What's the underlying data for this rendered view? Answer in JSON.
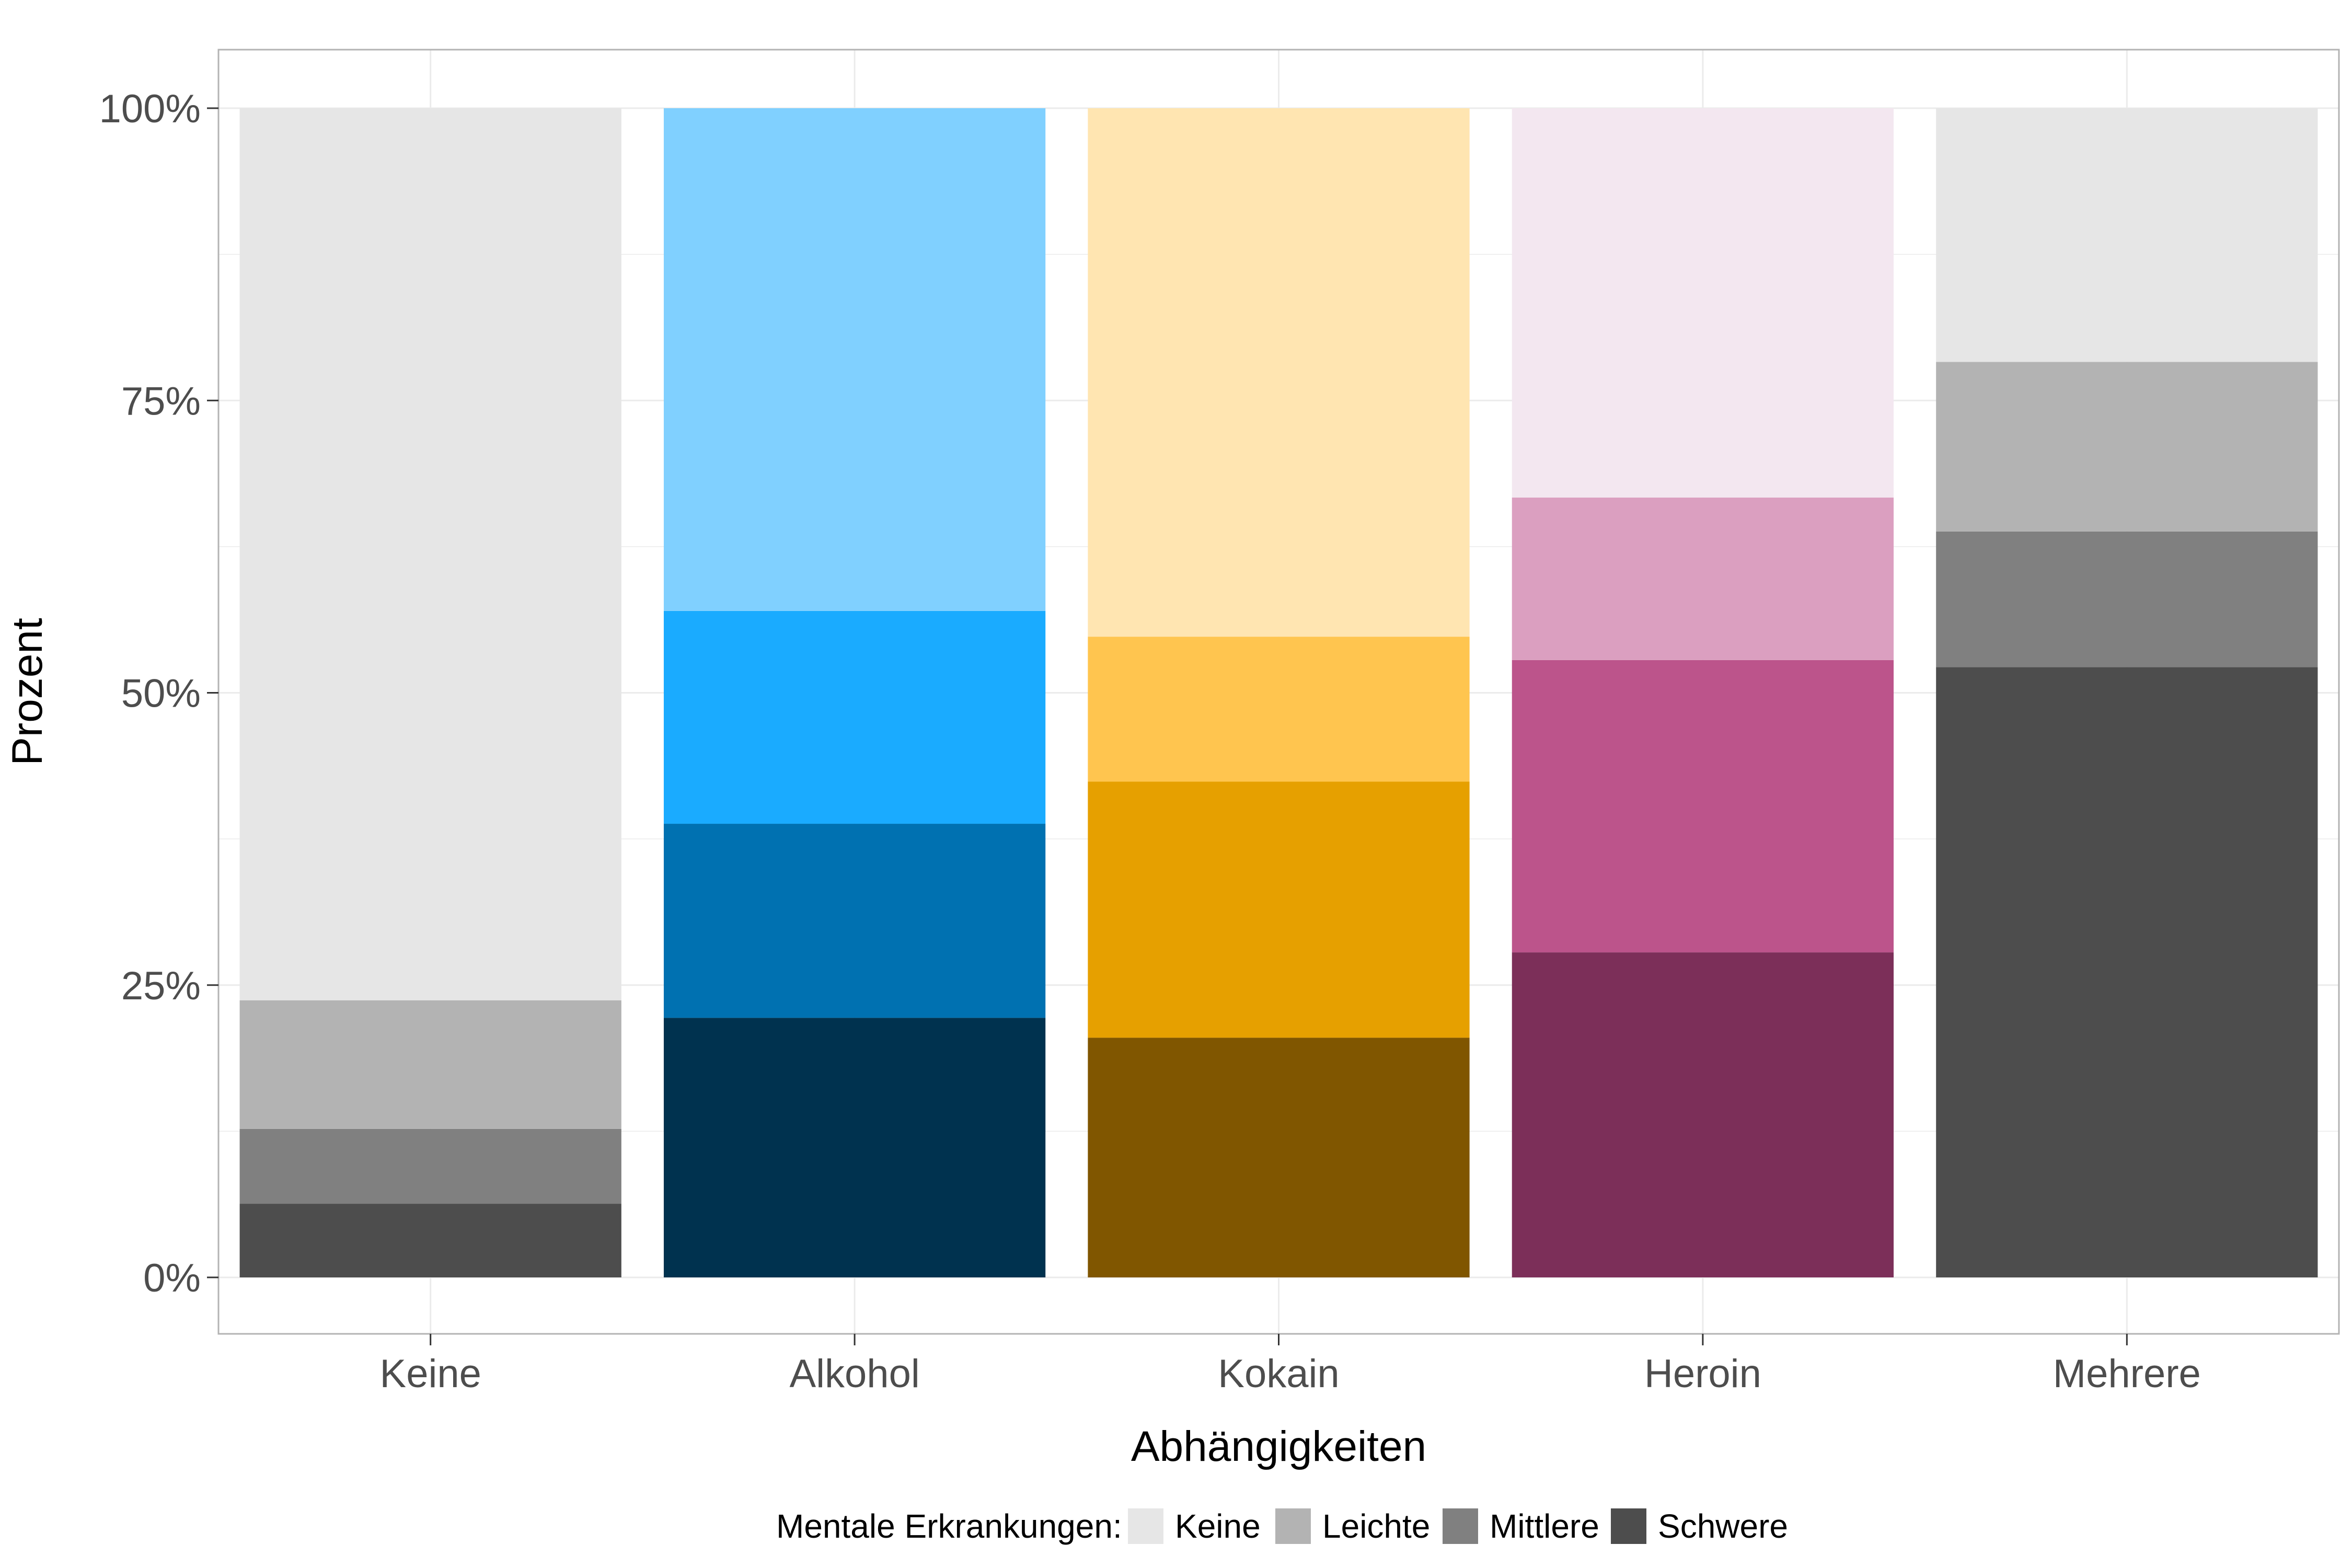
{
  "chart_data": {
    "type": "bar",
    "stacked": true,
    "normalized": true,
    "xlabel": "Abhängigkeiten",
    "ylabel": "Prozent",
    "ylim": [
      0,
      1
    ],
    "yticks": [
      "0%",
      "25%",
      "50%",
      "75%",
      "100%"
    ],
    "categories": [
      "Keine",
      "Alkohol",
      "Kokain",
      "Heroin",
      "Mehrere"
    ],
    "legend": {
      "title": "Mentale Erkrankungen:",
      "position": "bottom",
      "entries": [
        "Keine",
        "Leichte",
        "Mittlere",
        "Schwere"
      ],
      "colors": [
        "#e6e6e6",
        "#b3b3b3",
        "#808080",
        "#4d4d4d"
      ]
    },
    "series": [
      {
        "name": "Schwere",
        "values": [
          0.063,
          0.222,
          0.205,
          0.278,
          0.522
        ]
      },
      {
        "name": "Mittlere",
        "values": [
          0.064,
          0.166,
          0.219,
          0.25,
          0.116
        ]
      },
      {
        "name": "Leichte",
        "values": [
          0.11,
          0.182,
          0.124,
          0.139,
          0.145
        ]
      },
      {
        "name": "Keine",
        "values": [
          0.763,
          0.43,
          0.452,
          0.333,
          0.217
        ]
      }
    ],
    "colors": {
      "Keine": {
        "Schwere": "#4d4d4d",
        "Mittlere": "#808080",
        "Leichte": "#b3b3b3",
        "Keine": "#e6e6e6"
      },
      "Alkohol": {
        "Schwere": "#00324f",
        "Mittlere": "#0071b1",
        "Leichte": "#1aabff",
        "Keine": "#80d0ff"
      },
      "Kokain": {
        "Schwere": "#805600",
        "Mittlere": "#e6a000",
        "Leichte": "#ffc54f",
        "Keine": "#ffe5b1"
      },
      "Heroin": {
        "Schwere": "#7c2f59",
        "Mittlere": "#bc548b",
        "Leichte": "#db9fc0",
        "Keine": "#f3e7f0"
      },
      "Mehrere": {
        "Schwere": "#4d4d4d",
        "Mittlere": "#808080",
        "Leichte": "#b3b3b3",
        "Keine": "#e6e6e6"
      }
    },
    "grid": true
  }
}
